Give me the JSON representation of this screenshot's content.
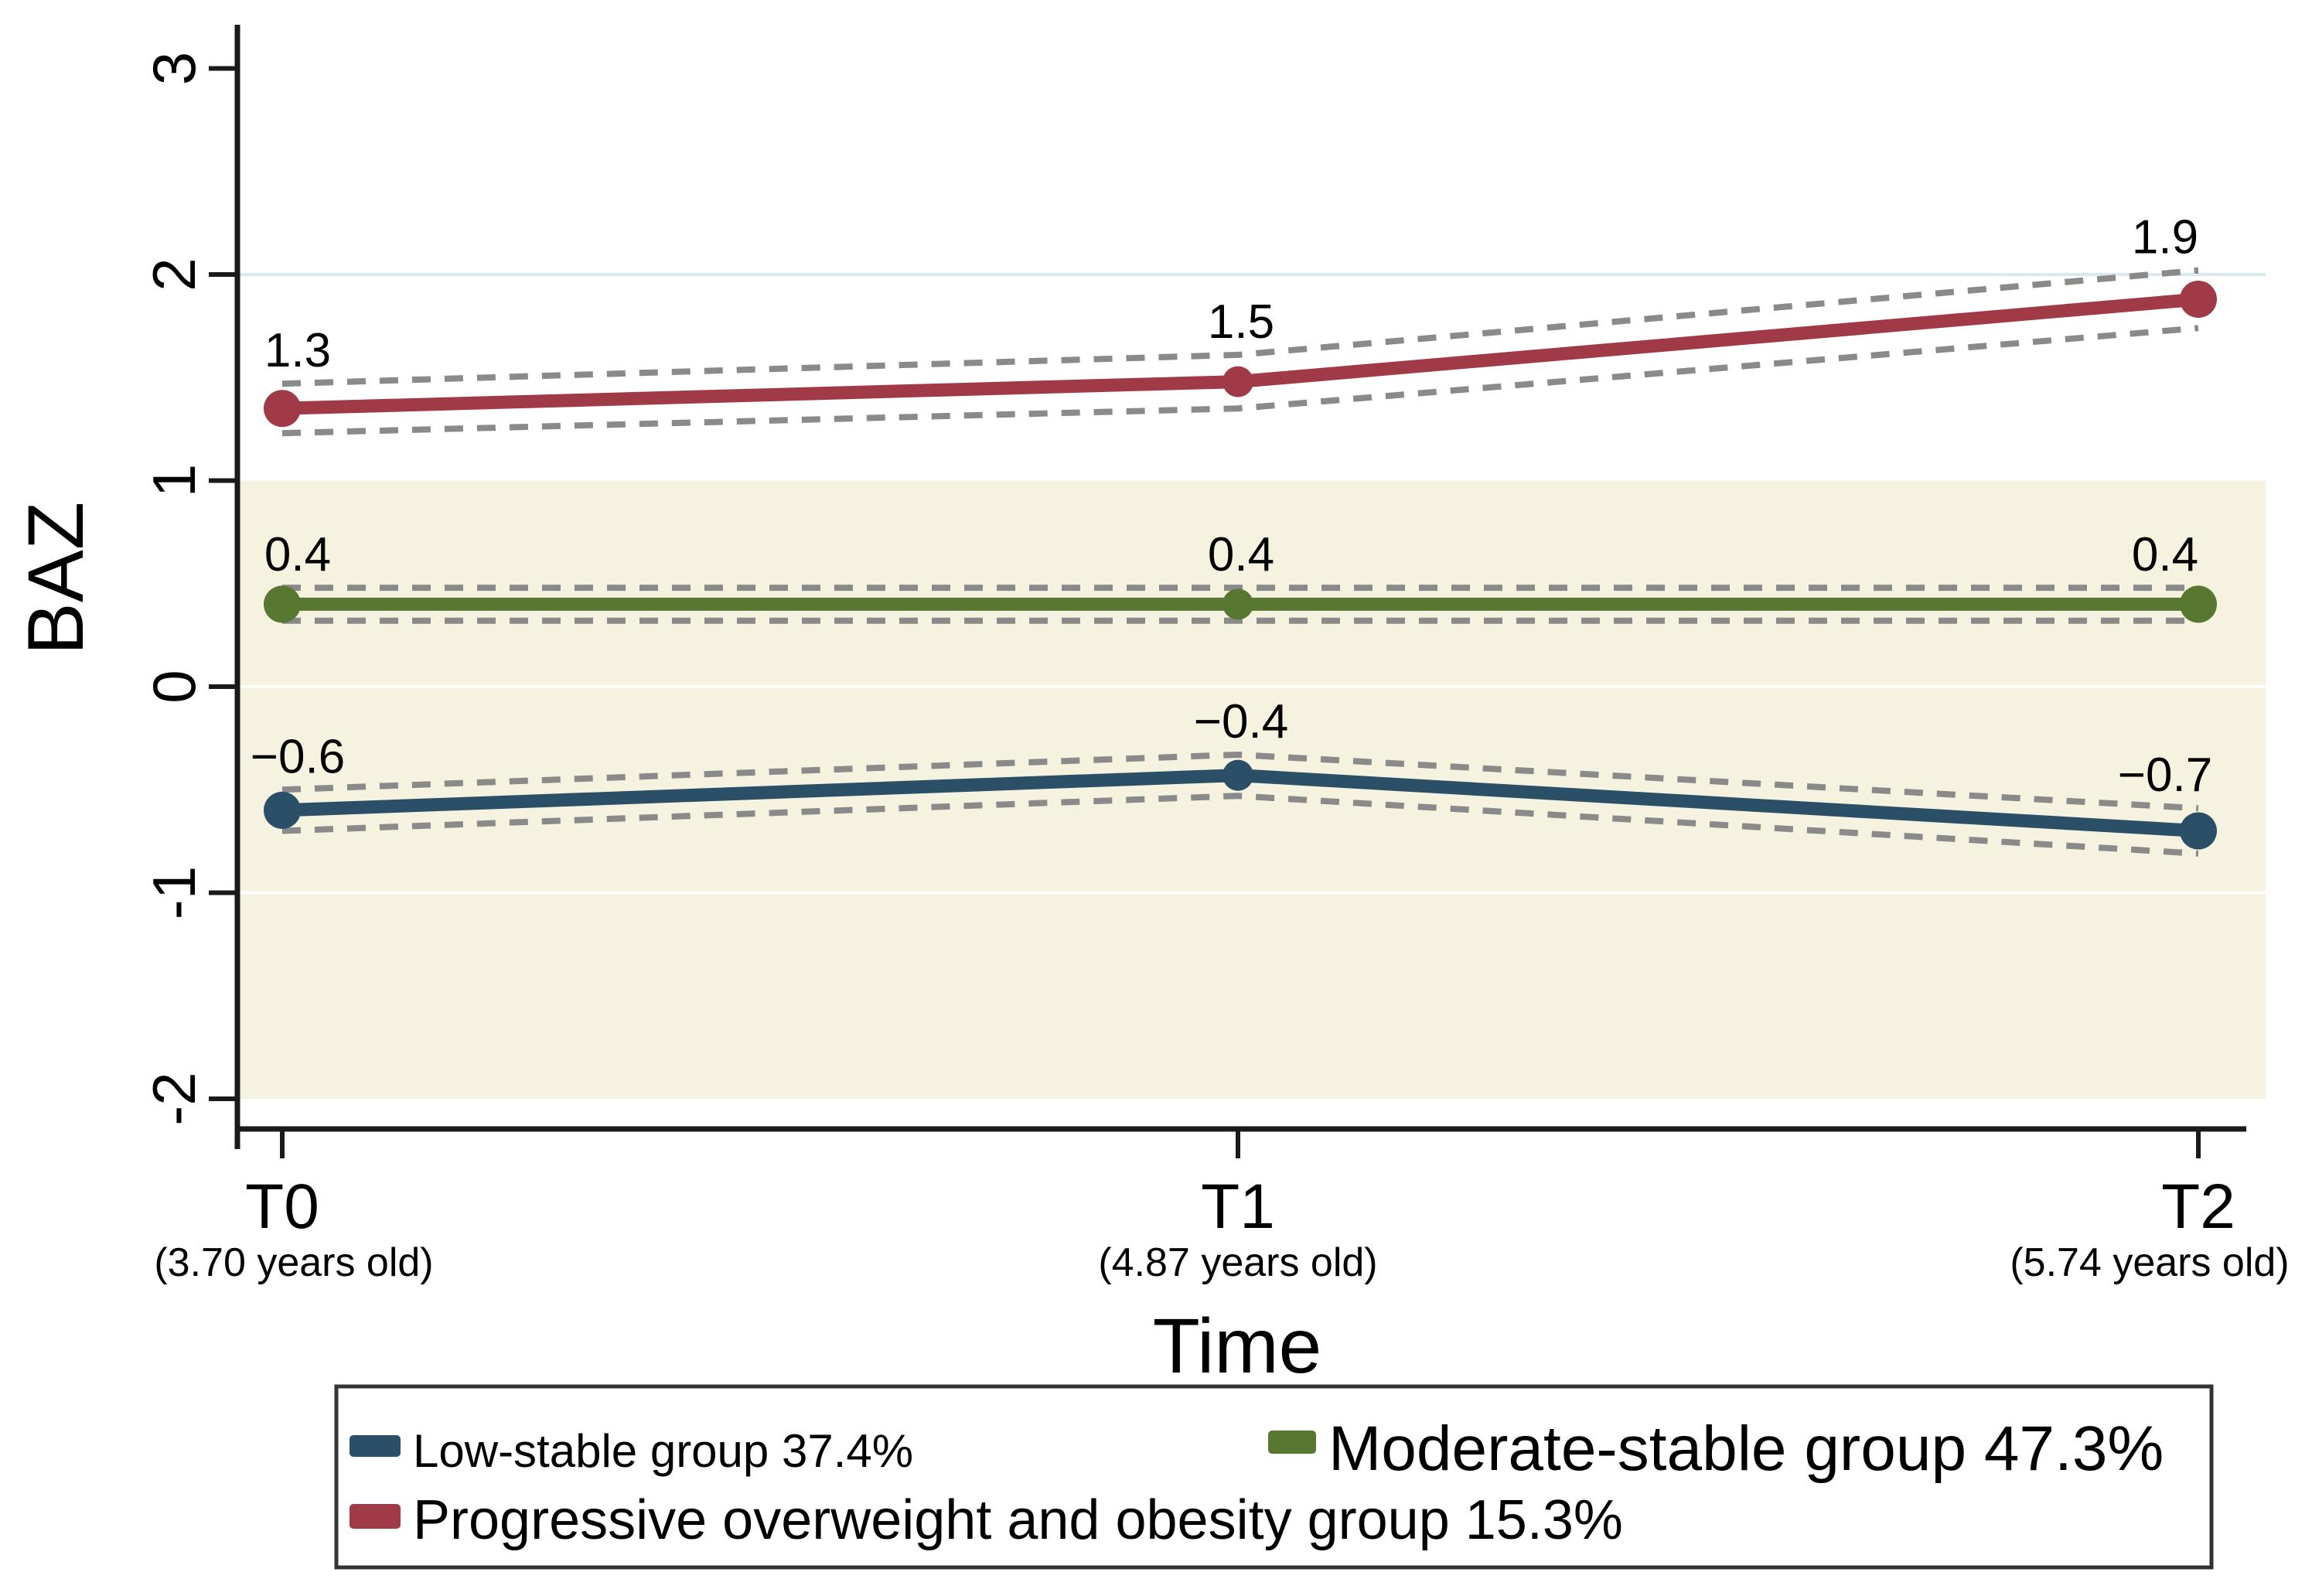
{
  "chart_data": {
    "type": "line",
    "title": "",
    "xlabel": "Time",
    "ylabel": "BAZ",
    "x_categories": [
      "T0",
      "T1",
      "T2"
    ],
    "x_sublabels": [
      "(3.70 years old)",
      "(4.87 years old)",
      "(5.74 years old)"
    ],
    "y_ticks": [
      3,
      2,
      1,
      0,
      -1,
      -2
    ],
    "ylim": [
      -2.2,
      3.2
    ],
    "grid": "off",
    "legend_position": "bottom",
    "reference_band": {
      "from": -2,
      "to": 1,
      "color": "#f6f2e0"
    },
    "reference_line": {
      "y": 2,
      "color": "#dbe8f0"
    },
    "band_gridlines": [
      0,
      -1
    ],
    "ci_style": {
      "color": "#8a8a8a",
      "dashed": true
    },
    "series": [
      {
        "name": "Low-stable group 37.4%",
        "percent": "37.4%",
        "color": "#2a4f66",
        "values": [
          -0.6,
          -0.4,
          -0.7
        ],
        "plot_values": [
          -0.6,
          -0.43,
          -0.7
        ],
        "ci_half_width": [
          0.1,
          0.1,
          0.11
        ],
        "point_labels": [
          "−0.6",
          "−0.4",
          "−0.7"
        ]
      },
      {
        "name": "Moderate-stable group 47.3%",
        "percent": "47.3%",
        "color": "#587731",
        "values": [
          0.4,
          0.4,
          0.4
        ],
        "plot_values": [
          0.4,
          0.4,
          0.4
        ],
        "ci_half_width": [
          0.08,
          0.08,
          0.08
        ],
        "point_labels": [
          "0.4",
          "0.4",
          "0.4"
        ]
      },
      {
        "name": "Progressive  overweight and obesity group 15.3%",
        "percent": "15.3%",
        "color": "#a03a46",
        "values": [
          1.3,
          1.5,
          1.9
        ],
        "plot_values": [
          1.35,
          1.48,
          1.88
        ],
        "ci_half_width": [
          0.12,
          0.13,
          0.14
        ],
        "point_labels": [
          "1.3",
          "1.5",
          "1.9"
        ]
      }
    ],
    "legend": {
      "border_color": "#333333",
      "background": "#ffffff",
      "entries": [
        {
          "label": "Low-stable group 37.4%",
          "color": "#2a4f66"
        },
        {
          "label": "Moderate-stable group 47.3%",
          "color": "#587731"
        },
        {
          "label": "Progressive  overweight and obesity group 15.3%",
          "color": "#a03a46"
        }
      ]
    },
    "axis_color": "#1a1a1a",
    "tick_label_color": "#000000"
  }
}
